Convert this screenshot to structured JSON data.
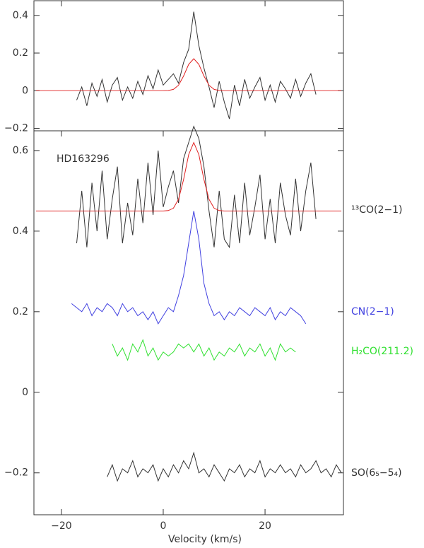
{
  "chart_data": [
    {
      "type": "line",
      "x": [
        -25,
        -24,
        -23,
        -22,
        -21,
        -20,
        -19,
        -18,
        -17,
        -16,
        -15,
        -14,
        -13,
        -12,
        -11,
        -10,
        -9,
        -8,
        -7,
        -6,
        -5,
        -4,
        -3,
        -2,
        -1,
        0,
        1,
        2,
        3,
        4,
        5,
        6,
        7,
        8,
        9,
        10,
        11,
        12,
        13,
        14,
        15,
        16,
        17,
        18,
        19,
        20,
        21,
        22,
        23,
        24,
        25,
        26,
        27,
        28,
        29,
        30,
        31,
        32,
        33,
        34,
        35
      ],
      "xlim": [
        -25.4,
        35.4
      ],
      "ylim": [
        -0.213,
        0.478
      ],
      "yticks": [
        {
          "value": -0.2,
          "label": "−0.2"
        },
        0,
        0.2,
        0.4
      ],
      "series": [
        {
          "color": "#333333",
          "values": [
            null,
            null,
            null,
            null,
            null,
            null,
            null,
            null,
            -0.05,
            0.02,
            -0.08,
            0.04,
            -0.03,
            0.06,
            -0.06,
            0.03,
            0.07,
            -0.05,
            0.02,
            -0.04,
            0.05,
            -0.02,
            0.08,
            0.01,
            0.11,
            0.03,
            0.06,
            0.09,
            0.04,
            0.15,
            0.22,
            0.42,
            0.24,
            0.12,
            0.02,
            -0.09,
            0.05,
            -0.06,
            -0.15,
            0.03,
            -0.08,
            0.06,
            -0.04,
            0.02,
            0.07,
            -0.05,
            0.03,
            -0.06,
            0.05,
            0.01,
            -0.04,
            0.06,
            -0.03,
            0.04,
            0.09,
            -0.02,
            null,
            null,
            null,
            null,
            null
          ]
        },
        {
          "color": "#e02020",
          "values": [
            0,
            0,
            0,
            0,
            0,
            0,
            0,
            0,
            0,
            0,
            0,
            0,
            0,
            0,
            0,
            0,
            0,
            0,
            0,
            0,
            0,
            0,
            0,
            0,
            0,
            0,
            0.001,
            0.007,
            0.029,
            0.078,
            0.14,
            0.17,
            0.14,
            0.078,
            0.029,
            0.007,
            0.001,
            0,
            0,
            0,
            0,
            0,
            0,
            0,
            0,
            0,
            0,
            0,
            0,
            0,
            0,
            0,
            0,
            0,
            0,
            0,
            0,
            0,
            0,
            0,
            0
          ]
        }
      ]
    },
    {
      "type": "line",
      "x": [
        -25,
        -24,
        -23,
        -22,
        -21,
        -20,
        -19,
        -18,
        -17,
        -16,
        -15,
        -14,
        -13,
        -12,
        -11,
        -10,
        -9,
        -8,
        -7,
        -6,
        -5,
        -4,
        -3,
        -2,
        -1,
        0,
        1,
        2,
        3,
        4,
        5,
        6,
        7,
        8,
        9,
        10,
        11,
        12,
        13,
        14,
        15,
        16,
        17,
        18,
        19,
        20,
        21,
        22,
        23,
        24,
        25,
        26,
        27,
        28,
        29,
        30,
        31,
        32,
        33,
        34,
        35
      ],
      "xlim": [
        -25.4,
        35.4
      ],
      "ylim": [
        -0.304,
        0.649
      ],
      "xticks": [
        {
          "value": -20,
          "label": "−20"
        },
        0,
        20
      ],
      "yticks": [
        {
          "value": -0.2,
          "label": "−0.2"
        },
        0,
        0.2,
        0.4,
        0.6
      ],
      "xlabel": "Velocity (km/s)",
      "annotation": "HD163296",
      "series": [
        {
          "name": "¹³CO(2−1)",
          "color": "#333333",
          "values": [
            null,
            null,
            null,
            null,
            null,
            null,
            null,
            null,
            0.37,
            0.5,
            0.36,
            0.52,
            0.4,
            0.55,
            0.38,
            0.48,
            0.56,
            0.37,
            0.47,
            0.39,
            0.53,
            0.42,
            0.57,
            0.44,
            0.6,
            0.46,
            0.51,
            0.55,
            0.47,
            0.58,
            0.62,
            0.66,
            0.63,
            0.56,
            0.45,
            0.36,
            0.5,
            0.38,
            0.36,
            0.49,
            0.37,
            0.52,
            0.39,
            0.46,
            0.54,
            0.38,
            0.48,
            0.37,
            0.52,
            0.44,
            0.39,
            0.53,
            0.4,
            0.5,
            0.57,
            0.43,
            null,
            null,
            null,
            null,
            null
          ]
        },
        {
          "name": "CN(2−1)",
          "color": "#4040e0",
          "values": [
            null,
            null,
            null,
            null,
            null,
            null,
            null,
            0.22,
            0.21,
            0.2,
            0.22,
            0.19,
            0.21,
            0.2,
            0.22,
            0.21,
            0.19,
            0.22,
            0.2,
            0.21,
            0.19,
            0.2,
            0.18,
            0.2,
            0.17,
            0.19,
            0.21,
            0.2,
            0.24,
            0.29,
            0.37,
            0.45,
            0.38,
            0.27,
            0.22,
            0.19,
            0.2,
            0.18,
            0.2,
            0.19,
            0.21,
            0.2,
            0.19,
            0.21,
            0.2,
            0.19,
            0.21,
            0.18,
            0.2,
            0.19,
            0.21,
            0.2,
            0.19,
            0.17,
            null,
            null,
            null,
            null,
            null,
            null,
            null
          ]
        },
        {
          "name": "H₂CO(211.2)",
          "color": "#30e030",
          "values": [
            null,
            null,
            null,
            null,
            null,
            null,
            null,
            null,
            null,
            null,
            null,
            null,
            null,
            null,
            null,
            0.12,
            0.09,
            0.11,
            0.08,
            0.12,
            0.1,
            0.13,
            0.09,
            0.11,
            0.08,
            0.1,
            0.09,
            0.1,
            0.12,
            0.11,
            0.12,
            0.1,
            0.12,
            0.09,
            0.11,
            0.08,
            0.1,
            0.09,
            0.11,
            0.1,
            0.12,
            0.09,
            0.11,
            0.1,
            0.12,
            0.09,
            0.11,
            0.08,
            0.12,
            0.1,
            0.11,
            0.1,
            null,
            null,
            null,
            null,
            null,
            null,
            null,
            null,
            null
          ]
        },
        {
          "name": "SO(6₅−5₄)",
          "color": "#333333",
          "values": [
            null,
            null,
            null,
            null,
            null,
            null,
            null,
            null,
            null,
            null,
            null,
            null,
            null,
            null,
            -0.21,
            -0.18,
            -0.22,
            -0.19,
            -0.2,
            -0.17,
            -0.21,
            -0.19,
            -0.2,
            -0.18,
            -0.22,
            -0.19,
            -0.21,
            -0.18,
            -0.2,
            -0.17,
            -0.19,
            -0.15,
            -0.2,
            -0.19,
            -0.21,
            -0.18,
            -0.2,
            -0.22,
            -0.19,
            -0.2,
            -0.18,
            -0.21,
            -0.19,
            -0.2,
            -0.17,
            -0.21,
            -0.19,
            -0.2,
            -0.18,
            -0.2,
            -0.19,
            -0.21,
            -0.18,
            -0.2,
            -0.19,
            -0.17,
            -0.2,
            -0.19,
            -0.21,
            -0.18,
            -0.2
          ]
        },
        {
          "color": "#e02020",
          "values": [
            0.45,
            0.45,
            0.45,
            0.45,
            0.45,
            0.45,
            0.45,
            0.45,
            0.45,
            0.45,
            0.45,
            0.45,
            0.45,
            0.45,
            0.45,
            0.45,
            0.45,
            0.45,
            0.45,
            0.45,
            0.45,
            0.45,
            0.45,
            0.45,
            0.45,
            0.45,
            0.451,
            0.457,
            0.479,
            0.528,
            0.59,
            0.62,
            0.59,
            0.528,
            0.479,
            0.457,
            0.451,
            0.45,
            0.45,
            0.45,
            0.45,
            0.45,
            0.45,
            0.45,
            0.45,
            0.45,
            0.45,
            0.45,
            0.45,
            0.45,
            0.45,
            0.45,
            0.45,
            0.45,
            0.45,
            0.45,
            0.45,
            0.45,
            0.45,
            0.45,
            0.45
          ]
        }
      ]
    }
  ]
}
